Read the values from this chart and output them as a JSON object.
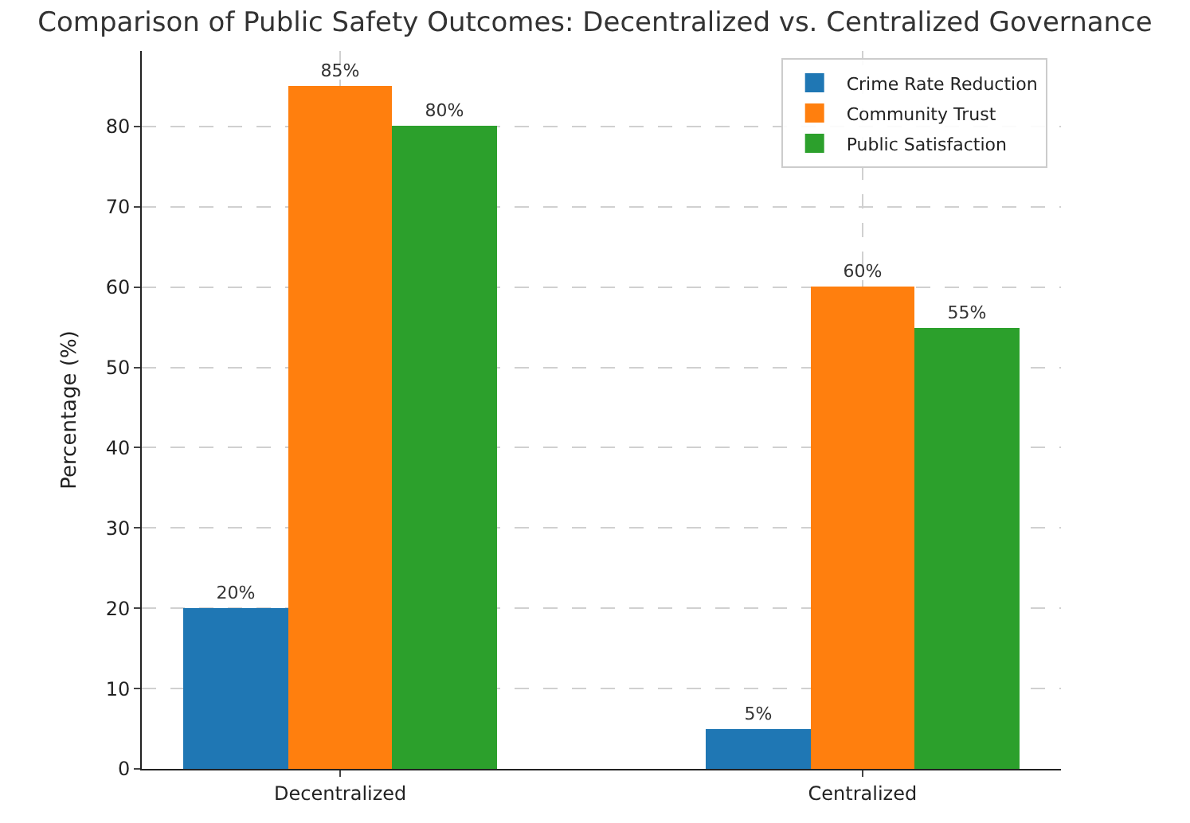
{
  "chart_data": {
    "type": "bar",
    "title": "Comparison of Public Safety Outcomes: Decentralized vs. Centralized Governance",
    "ylabel": "Percentage (%)",
    "categories": [
      "Decentralized",
      "Centralized"
    ],
    "series": [
      {
        "name": "Crime Rate Reduction",
        "color": "#1f77b4",
        "values": [
          20,
          5
        ],
        "value_labels": [
          "20%",
          "5%"
        ]
      },
      {
        "name": "Community Trust",
        "color": "#ff7f0e",
        "values": [
          85,
          60
        ],
        "value_labels": [
          "85%",
          "60%"
        ]
      },
      {
        "name": "Public Satisfaction",
        "color": "#2ca02c",
        "values": [
          80,
          55
        ],
        "value_labels": [
          "80%",
          "55%"
        ]
      }
    ],
    "ylim": [
      0,
      89.4
    ],
    "yticks": [
      0,
      10,
      20,
      30,
      40,
      50,
      60,
      70,
      80
    ],
    "grid": true,
    "legend": "top right"
  }
}
